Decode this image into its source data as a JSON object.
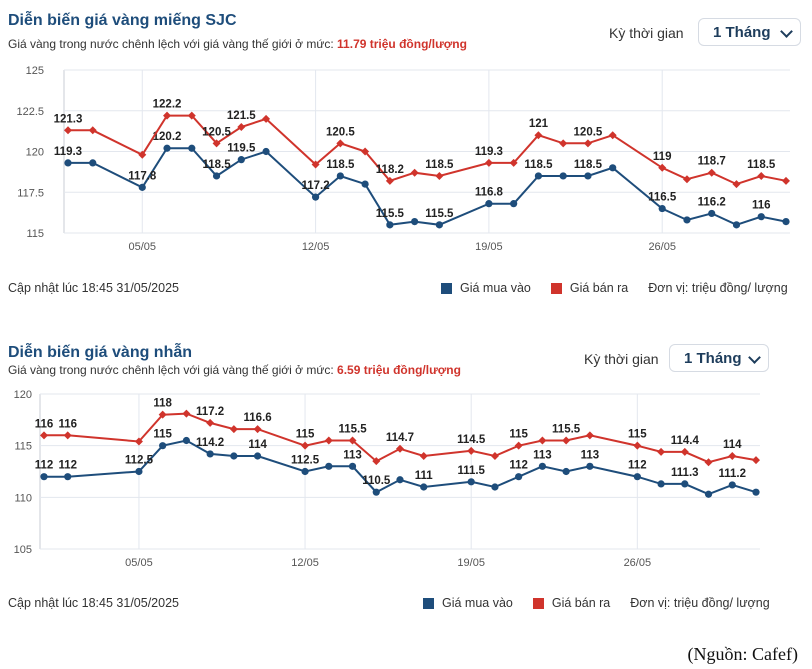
{
  "colors": {
    "buy": "#1e4d7b",
    "sell": "#d0342c",
    "grid": "#e3e7ee",
    "title": "#1e4d7b"
  },
  "source_note": "(Nguồn: Cafef)",
  "panels": [
    {
      "title": "Diễn biến giá vàng miếng SJC",
      "subtitle_prefix": "Giá vàng trong nước chênh lệch với giá vàng thế giới ở mức:",
      "subtitle_value": "11.79 triệu đồng/lượng",
      "period_label": "Kỳ thời gian",
      "period_value": "1 Tháng",
      "updated": "Cập nhật lúc 18:45 31/05/2025",
      "legend_buy": "Giá mua vào",
      "legend_sell": "Giá bán ra",
      "unit": "Đơn vị: triệu đồng/ lượng"
    },
    {
      "title": "Diễn biến giá vàng nhẫn",
      "subtitle_prefix": "Giá vàng trong nước chênh lệch với giá vàng thế giới ở mức:",
      "subtitle_value": "6.59 triệu đồng/lượng",
      "period_label": "Kỳ thời gian",
      "period_value": "1 Tháng",
      "updated": "Cập nhật lúc 18:45 31/05/2025",
      "legend_buy": "Giá mua vào",
      "legend_sell": "Giá bán ra",
      "unit": "Đơn vị: triệu đồng/ lượng"
    }
  ],
  "chart_data": [
    {
      "type": "line",
      "x": [
        "2025-05-02",
        "2025-05-03",
        "2025-05-05",
        "2025-05-06",
        "2025-05-07",
        "2025-05-08",
        "2025-05-09",
        "2025-05-10",
        "2025-05-12",
        "2025-05-13",
        "2025-05-14",
        "2025-05-15",
        "2025-05-16",
        "2025-05-17",
        "2025-05-19",
        "2025-05-20",
        "2025-05-21",
        "2025-05-22",
        "2025-05-23",
        "2025-05-24",
        "2025-05-26",
        "2025-05-27",
        "2025-05-28",
        "2025-05-29",
        "2025-05-30",
        "2025-05-31"
      ],
      "xticks": [
        "05/05",
        "12/05",
        "19/05",
        "26/05"
      ],
      "xtick_dates": [
        "2025-05-05",
        "2025-05-12",
        "2025-05-19",
        "2025-05-26"
      ],
      "yticks": [
        "115",
        "117.5",
        "120",
        "122.5",
        "125"
      ],
      "ylim": [
        115,
        125
      ],
      "grid": true,
      "series": [
        {
          "key": "buy",
          "values": [
            119.3,
            119.3,
            117.8,
            120.2,
            120.2,
            118.5,
            119.5,
            120,
            117.2,
            118.5,
            118,
            115.5,
            115.7,
            115.5,
            116.8,
            116.8,
            118.5,
            118.5,
            118.5,
            119,
            116.5,
            115.8,
            116.2,
            115.5,
            116,
            115.7
          ],
          "labels": [
            "119.3",
            "",
            "117.8",
            "120.2",
            "",
            "118.5",
            "119.5",
            "",
            "117.2",
            "118.5",
            "",
            "115.5",
            "",
            "115.5",
            "116.8",
            "",
            "118.5",
            "",
            "118.5",
            "",
            "116.5",
            "",
            "116.2",
            "",
            "116",
            ""
          ]
        },
        {
          "key": "sell",
          "values": [
            121.3,
            121.3,
            119.8,
            122.2,
            122.2,
            120.5,
            121.5,
            122,
            119.2,
            120.5,
            120,
            118.2,
            118.7,
            118.5,
            119.3,
            119.3,
            121,
            120.5,
            120.5,
            121,
            119,
            118.3,
            118.7,
            118,
            118.5,
            118.2
          ],
          "labels": [
            "121.3",
            "",
            "",
            "122.2",
            "",
            "120.5",
            "121.5",
            "",
            "",
            "120.5",
            "",
            "118.2",
            "",
            "118.5",
            "119.3",
            "",
            "121",
            "",
            "120.5",
            "",
            "119",
            "",
            "118.7",
            "",
            "118.5",
            ""
          ]
        }
      ]
    },
    {
      "type": "line",
      "x": [
        "2025-05-01",
        "2025-05-02",
        "2025-05-05",
        "2025-05-06",
        "2025-05-07",
        "2025-05-08",
        "2025-05-09",
        "2025-05-10",
        "2025-05-12",
        "2025-05-13",
        "2025-05-14",
        "2025-05-15",
        "2025-05-16",
        "2025-05-17",
        "2025-05-19",
        "2025-05-20",
        "2025-05-21",
        "2025-05-22",
        "2025-05-23",
        "2025-05-24",
        "2025-05-26",
        "2025-05-27",
        "2025-05-28",
        "2025-05-29",
        "2025-05-30",
        "2025-05-31"
      ],
      "xticks": [
        "05/05",
        "12/05",
        "19/05",
        "26/05"
      ],
      "xtick_dates": [
        "2025-05-05",
        "2025-05-12",
        "2025-05-19",
        "2025-05-26"
      ],
      "yticks": [
        "105",
        "110",
        "115",
        "120"
      ],
      "ylim": [
        105,
        120
      ],
      "grid": true,
      "series": [
        {
          "key": "buy",
          "values": [
            112,
            112,
            112.5,
            115,
            115.5,
            114.2,
            114,
            114,
            112.5,
            113,
            113,
            110.5,
            111.7,
            111,
            111.5,
            111,
            112,
            113,
            112.5,
            113,
            112,
            111.3,
            111.3,
            110.3,
            111.2,
            110.5
          ],
          "labels": [
            "112",
            "112",
            "112.5",
            "115",
            "",
            "114.2",
            "",
            "114",
            "112.5",
            "",
            "113",
            "110.5",
            "",
            "111",
            "111.5",
            "",
            "112",
            "113",
            "",
            "113",
            "112",
            "",
            "111.3",
            "",
            "111.2",
            ""
          ]
        },
        {
          "key": "sell",
          "values": [
            116,
            116,
            115.4,
            118,
            118.1,
            117.2,
            116.6,
            116.6,
            115,
            115.5,
            115.5,
            113.5,
            114.7,
            114,
            114.5,
            114,
            115,
            115.5,
            115.5,
            116,
            115,
            114.4,
            114.4,
            113.4,
            114,
            113.6
          ],
          "labels": [
            "116",
            "116",
            "",
            "118",
            "",
            "117.2",
            "",
            "116.6",
            "115",
            "",
            "115.5",
            "",
            "114.7",
            "",
            "114.5",
            "",
            "115",
            "",
            "115.5",
            "",
            "115",
            "",
            "114.4",
            "",
            "114",
            ""
          ]
        }
      ]
    }
  ]
}
